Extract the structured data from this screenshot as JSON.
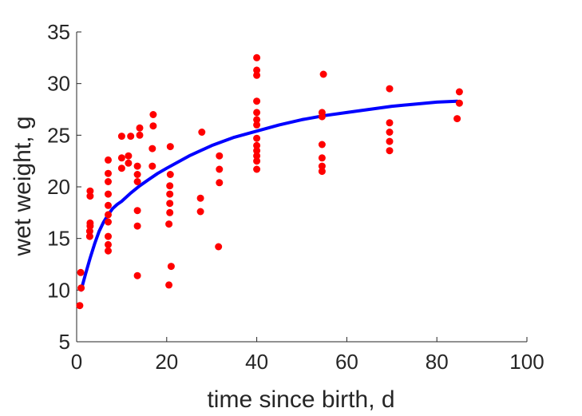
{
  "chart_data": {
    "type": "scatter",
    "xlabel": "time since birth, d",
    "ylabel": "wet weight, g",
    "xlim": [
      0,
      100
    ],
    "ylim": [
      5,
      35
    ],
    "xticks": [
      0,
      20,
      40,
      60,
      80,
      100
    ],
    "yticks": [
      5,
      10,
      15,
      20,
      25,
      30,
      35
    ],
    "grid": false,
    "legend": "none",
    "series": [
      {
        "kind": "scatter",
        "color": "#ff0000",
        "points": [
          [
            0.7,
            8.5
          ],
          [
            0.9,
            11.7
          ],
          [
            1.0,
            10.2
          ],
          [
            2.9,
            15.2
          ],
          [
            2.9,
            15.7
          ],
          [
            3.0,
            16.2
          ],
          [
            3.0,
            16.5
          ],
          [
            3.0,
            19.1
          ],
          [
            3.0,
            19.6
          ],
          [
            7.0,
            13.8
          ],
          [
            7.0,
            14.4
          ],
          [
            7.0,
            15.2
          ],
          [
            7.0,
            16.6
          ],
          [
            7.0,
            17.3
          ],
          [
            7.0,
            18.2
          ],
          [
            7.0,
            19.3
          ],
          [
            7.0,
            20.5
          ],
          [
            7.0,
            21.3
          ],
          [
            7.0,
            22.6
          ],
          [
            10.0,
            21.8
          ],
          [
            10.0,
            22.8
          ],
          [
            10.0,
            24.9
          ],
          [
            11.5,
            22.3
          ],
          [
            11.5,
            23.0
          ],
          [
            12.0,
            24.9
          ],
          [
            13.5,
            11.4
          ],
          [
            13.5,
            16.2
          ],
          [
            13.5,
            17.7
          ],
          [
            13.5,
            20.5
          ],
          [
            13.5,
            21.2
          ],
          [
            13.5,
            22.0
          ],
          [
            14.0,
            25.0
          ],
          [
            14.0,
            25.7
          ],
          [
            16.8,
            22.0
          ],
          [
            16.8,
            23.7
          ],
          [
            17.0,
            25.9
          ],
          [
            17.0,
            27.0
          ],
          [
            20.5,
            10.5
          ],
          [
            20.5,
            16.4
          ],
          [
            20.7,
            17.5
          ],
          [
            20.7,
            18.4
          ],
          [
            20.7,
            19.3
          ],
          [
            20.7,
            20.1
          ],
          [
            20.8,
            21.2
          ],
          [
            20.8,
            23.9
          ],
          [
            21.0,
            12.3
          ],
          [
            27.5,
            17.6
          ],
          [
            27.5,
            18.9
          ],
          [
            27.8,
            25.3
          ],
          [
            31.5,
            14.2
          ],
          [
            31.7,
            20.4
          ],
          [
            31.7,
            21.7
          ],
          [
            31.7,
            23.0
          ],
          [
            40.0,
            21.7
          ],
          [
            40.0,
            22.5
          ],
          [
            40.0,
            23.0
          ],
          [
            40.0,
            23.5
          ],
          [
            40.0,
            24.0
          ],
          [
            40.0,
            24.7
          ],
          [
            40.0,
            26.0
          ],
          [
            40.0,
            26.5
          ],
          [
            40.0,
            27.2
          ],
          [
            40.0,
            28.3
          ],
          [
            40.0,
            30.8
          ],
          [
            40.0,
            31.3
          ],
          [
            40.0,
            32.5
          ],
          [
            54.5,
            21.5
          ],
          [
            54.5,
            22.0
          ],
          [
            54.5,
            22.8
          ],
          [
            54.5,
            24.1
          ],
          [
            54.5,
            26.8
          ],
          [
            54.5,
            27.2
          ],
          [
            54.8,
            30.9
          ],
          [
            69.5,
            23.5
          ],
          [
            69.5,
            24.4
          ],
          [
            69.5,
            25.3
          ],
          [
            69.5,
            26.2
          ],
          [
            69.5,
            29.5
          ],
          [
            84.5,
            26.6
          ],
          [
            85.0,
            28.1
          ],
          [
            85.0,
            29.2
          ]
        ]
      },
      {
        "kind": "line",
        "color": "#0000ff",
        "points": [
          [
            1.0,
            10.0
          ],
          [
            2.0,
            11.6
          ],
          [
            3.0,
            13.1
          ],
          [
            4.0,
            14.5
          ],
          [
            5.0,
            15.7
          ],
          [
            6.0,
            16.6
          ],
          [
            7.0,
            17.3
          ],
          [
            8.0,
            17.9
          ],
          [
            9.0,
            18.3
          ],
          [
            10.0,
            18.6
          ],
          [
            12.0,
            19.4
          ],
          [
            14.0,
            20.1
          ],
          [
            16.0,
            20.7
          ],
          [
            18.0,
            21.3
          ],
          [
            20.0,
            21.8
          ],
          [
            25.0,
            23.0
          ],
          [
            30.0,
            24.0
          ],
          [
            35.0,
            24.8
          ],
          [
            40.0,
            25.4
          ],
          [
            45.0,
            26.0
          ],
          [
            50.0,
            26.5
          ],
          [
            55.0,
            26.9
          ],
          [
            60.0,
            27.2
          ],
          [
            65.0,
            27.5
          ],
          [
            70.0,
            27.8
          ],
          [
            75.0,
            28.0
          ],
          [
            80.0,
            28.2
          ],
          [
            84.5,
            28.3
          ]
        ]
      }
    ]
  }
}
